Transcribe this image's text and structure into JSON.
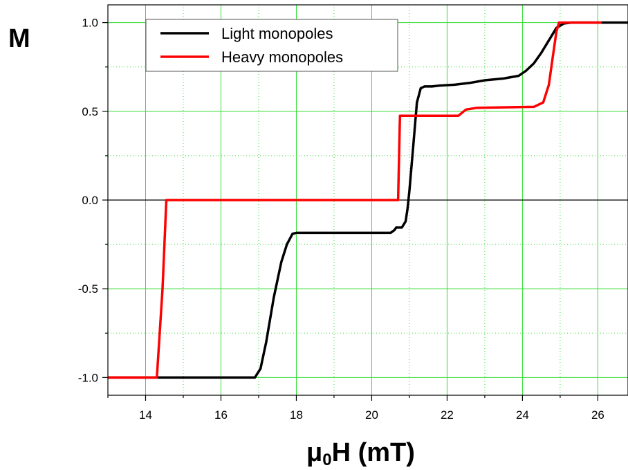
{
  "chart_data": {
    "type": "line",
    "title": "",
    "ylabel": "M",
    "xlabel": {
      "prefix": "μ",
      "subscript": "0",
      "suffix": "H (mT)"
    },
    "xlim": [
      13,
      26.8
    ],
    "ylim": [
      -1.1,
      1.1
    ],
    "x_ticks": [
      14,
      16,
      18,
      20,
      22,
      24,
      26
    ],
    "y_ticks": [
      -1.0,
      -0.5,
      0.0,
      0.5,
      1.0
    ],
    "x_tick_labels": [
      "14",
      "16",
      "18",
      "20",
      "22",
      "24",
      "26"
    ],
    "y_tick_labels": [
      "-1.0",
      "-0.5",
      "0.0",
      "0.5",
      "1.0"
    ],
    "grid": true,
    "grid_color": "#33dd33",
    "zero_line": true,
    "legend_position": "top-left",
    "series": [
      {
        "name": "Light monopoles",
        "color": "#000000",
        "points": [
          [
            13.0,
            -1.0
          ],
          [
            16.9,
            -1.0
          ],
          [
            17.05,
            -0.95
          ],
          [
            17.2,
            -0.8
          ],
          [
            17.4,
            -0.55
          ],
          [
            17.6,
            -0.35
          ],
          [
            17.75,
            -0.25
          ],
          [
            17.9,
            -0.19
          ],
          [
            18.0,
            -0.185
          ],
          [
            20.5,
            -0.185
          ],
          [
            20.6,
            -0.17
          ],
          [
            20.65,
            -0.155
          ],
          [
            20.8,
            -0.155
          ],
          [
            20.9,
            -0.12
          ],
          [
            20.95,
            -0.05
          ],
          [
            21.0,
            0.05
          ],
          [
            21.1,
            0.3
          ],
          [
            21.2,
            0.55
          ],
          [
            21.3,
            0.63
          ],
          [
            21.4,
            0.64
          ],
          [
            21.6,
            0.64
          ],
          [
            21.8,
            0.645
          ],
          [
            22.2,
            0.65
          ],
          [
            22.6,
            0.66
          ],
          [
            23.0,
            0.675
          ],
          [
            23.5,
            0.685
          ],
          [
            23.9,
            0.7
          ],
          [
            24.1,
            0.73
          ],
          [
            24.3,
            0.77
          ],
          [
            24.5,
            0.83
          ],
          [
            24.7,
            0.9
          ],
          [
            24.9,
            0.97
          ],
          [
            25.1,
            0.995
          ],
          [
            25.3,
            1.0
          ],
          [
            26.8,
            1.0
          ]
        ]
      },
      {
        "name": "Heavy monopoles",
        "color": "#ff0000",
        "points": [
          [
            13.0,
            -1.0
          ],
          [
            14.3,
            -1.0
          ],
          [
            14.45,
            -0.5
          ],
          [
            14.55,
            0.0
          ],
          [
            20.7,
            0.0
          ],
          [
            20.75,
            0.475
          ],
          [
            22.3,
            0.475
          ],
          [
            22.5,
            0.51
          ],
          [
            22.8,
            0.52
          ],
          [
            24.3,
            0.525
          ],
          [
            24.55,
            0.55
          ],
          [
            24.7,
            0.65
          ],
          [
            24.8,
            0.8
          ],
          [
            24.9,
            0.95
          ],
          [
            24.97,
            1.0
          ],
          [
            26.1,
            1.0
          ]
        ]
      }
    ]
  }
}
